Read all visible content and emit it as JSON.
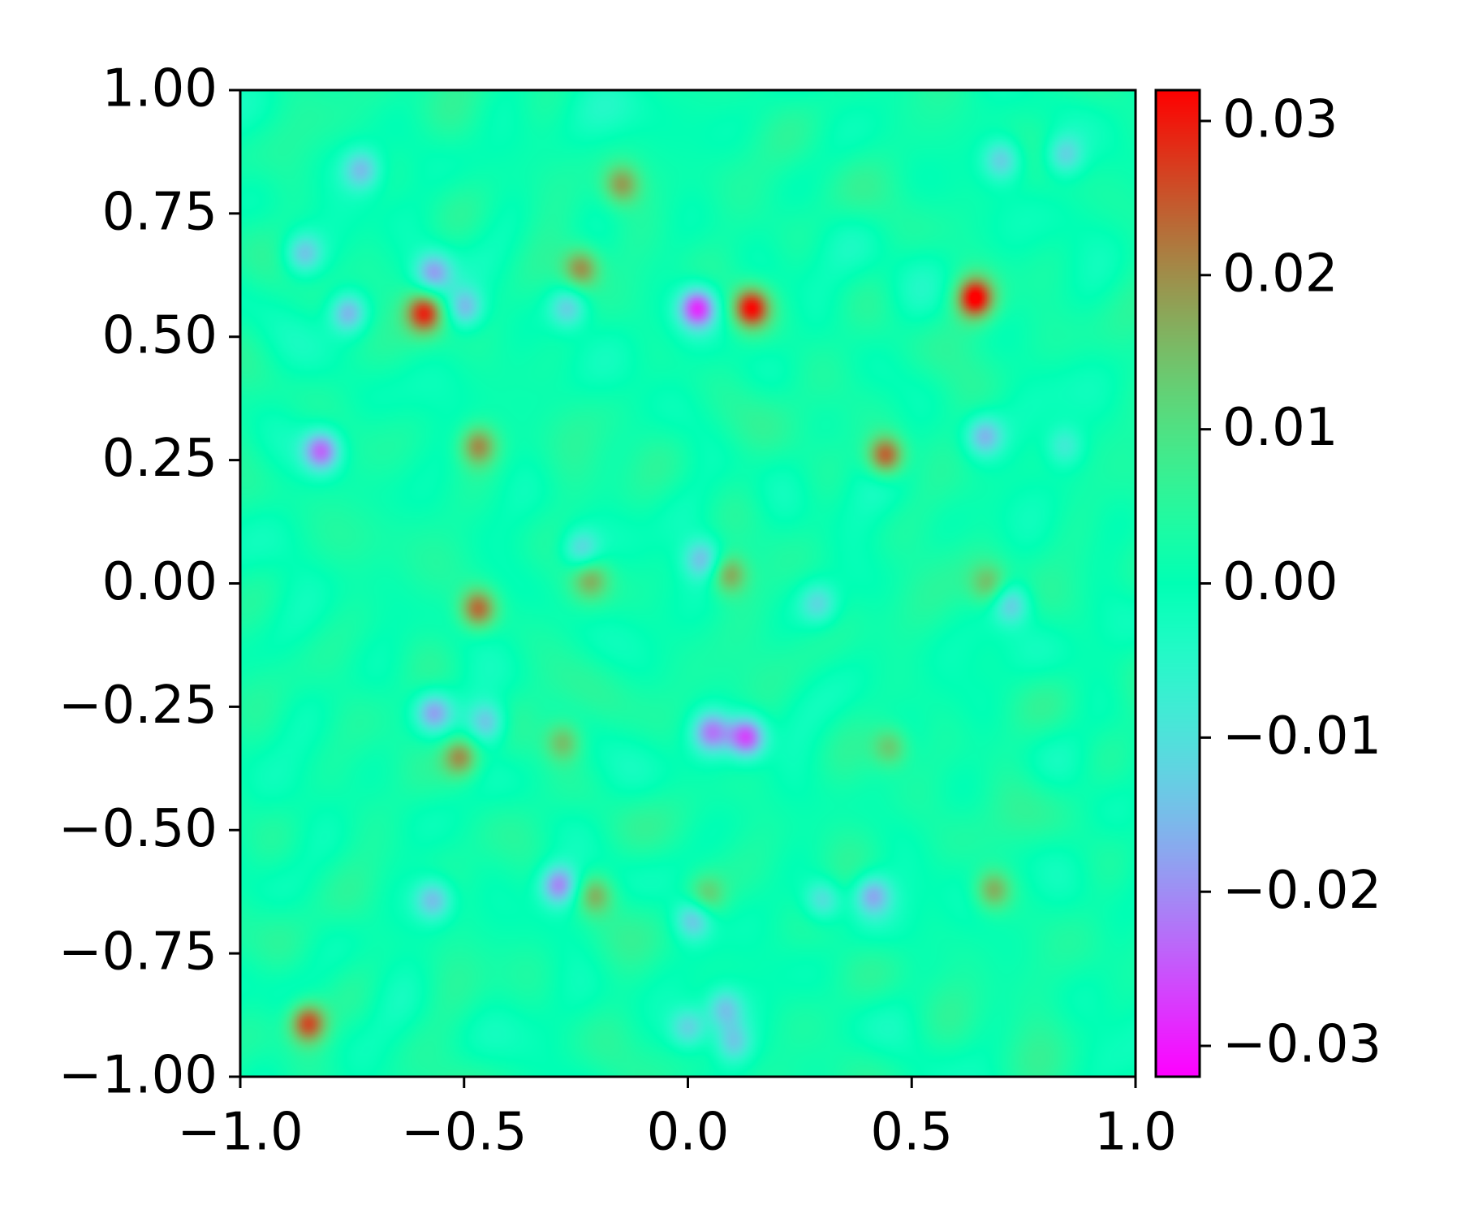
{
  "chart_data": {
    "type": "heatmap",
    "title": "",
    "xlabel": "",
    "ylabel": "",
    "xlim": [
      -1.0,
      1.0
    ],
    "ylim": [
      -1.0,
      1.0
    ],
    "x_ticks": [
      -1.0,
      -0.5,
      0.0,
      0.5,
      1.0
    ],
    "x_tick_labels": [
      "−1.0",
      "−0.5",
      "0.0",
      "0.5",
      "1.0"
    ],
    "y_ticks": [
      1.0,
      0.75,
      0.5,
      0.25,
      0.0,
      -0.25,
      -0.5,
      -0.75,
      -1.0
    ],
    "y_tick_labels": [
      "1.00",
      "0.75",
      "0.50",
      "0.25",
      "0.00",
      "−0.25",
      "−0.50",
      "−0.75",
      "−1.00"
    ],
    "colormap": "rainbow",
    "colorbar": {
      "vmin": -0.032,
      "vmax": 0.032,
      "ticks": [
        0.03,
        0.02,
        0.01,
        0.0,
        -0.01,
        -0.02,
        -0.03
      ],
      "tick_labels": [
        "0.03",
        "0.02",
        "0.01",
        "0.00",
        "−0.01",
        "−0.02",
        "−0.03"
      ]
    },
    "grid": false,
    "hotspots": [
      {
        "x": 0.64,
        "y": 0.58,
        "v": 0.029
      },
      {
        "x": 0.14,
        "y": 0.56,
        "v": 0.028
      },
      {
        "x": 0.02,
        "y": 0.56,
        "v": -0.028
      },
      {
        "x": -0.59,
        "y": 0.55,
        "v": 0.025
      },
      {
        "x": -0.24,
        "y": 0.64,
        "v": 0.018
      },
      {
        "x": -0.15,
        "y": 0.81,
        "v": 0.016
      },
      {
        "x": 0.44,
        "y": 0.26,
        "v": 0.025
      },
      {
        "x": -0.47,
        "y": 0.28,
        "v": 0.018
      },
      {
        "x": -0.47,
        "y": -0.05,
        "v": 0.022
      },
      {
        "x": 0.09,
        "y": 0.02,
        "v": 0.017
      },
      {
        "x": -0.22,
        "y": 0.01,
        "v": 0.013
      },
      {
        "x": -0.85,
        "y": -0.89,
        "v": 0.025
      },
      {
        "x": -0.51,
        "y": -0.35,
        "v": 0.019
      },
      {
        "x": -0.28,
        "y": -0.32,
        "v": 0.014
      },
      {
        "x": 0.45,
        "y": -0.33,
        "v": 0.013
      },
      {
        "x": 0.68,
        "y": -0.62,
        "v": 0.016
      },
      {
        "x": -0.21,
        "y": -0.63,
        "v": 0.015
      },
      {
        "x": 0.04,
        "y": -0.63,
        "v": 0.011
      },
      {
        "x": 0.67,
        "y": 0.0,
        "v": 0.012
      },
      {
        "x": 0.13,
        "y": -0.31,
        "v": -0.027
      },
      {
        "x": -0.82,
        "y": 0.27,
        "v": -0.024
      },
      {
        "x": -0.29,
        "y": -0.61,
        "v": -0.022
      },
      {
        "x": -0.57,
        "y": 0.63,
        "v": -0.018
      },
      {
        "x": -0.5,
        "y": 0.56,
        "v": -0.017
      },
      {
        "x": -0.76,
        "y": 0.55,
        "v": -0.018
      },
      {
        "x": -0.86,
        "y": 0.67,
        "v": -0.015
      },
      {
        "x": -0.73,
        "y": 0.84,
        "v": -0.015
      },
      {
        "x": -0.27,
        "y": 0.56,
        "v": -0.014
      },
      {
        "x": 0.05,
        "y": -0.3,
        "v": -0.02
      },
      {
        "x": -0.57,
        "y": -0.26,
        "v": -0.018
      },
      {
        "x": -0.45,
        "y": -0.28,
        "v": -0.015
      },
      {
        "x": 0.01,
        "y": -0.68,
        "v": -0.016
      },
      {
        "x": 0.08,
        "y": -0.86,
        "v": -0.014
      },
      {
        "x": 0.41,
        "y": -0.63,
        "v": -0.017
      },
      {
        "x": 0.3,
        "y": -0.64,
        "v": -0.014
      },
      {
        "x": 0.66,
        "y": 0.3,
        "v": -0.016
      },
      {
        "x": 0.72,
        "y": -0.04,
        "v": -0.015
      },
      {
        "x": -0.57,
        "y": -0.64,
        "v": -0.016
      },
      {
        "x": 0.84,
        "y": 0.87,
        "v": -0.014
      },
      {
        "x": 0.7,
        "y": 0.86,
        "v": -0.014
      },
      {
        "x": -0.24,
        "y": 0.07,
        "v": -0.014
      },
      {
        "x": 0.03,
        "y": 0.05,
        "v": -0.015
      },
      {
        "x": 0.29,
        "y": -0.04,
        "v": -0.012
      },
      {
        "x": 0.1,
        "y": -0.93,
        "v": -0.013
      },
      {
        "x": 0.0,
        "y": -0.9,
        "v": -0.014
      },
      {
        "x": 0.84,
        "y": 0.28,
        "v": -0.01
      }
    ]
  }
}
